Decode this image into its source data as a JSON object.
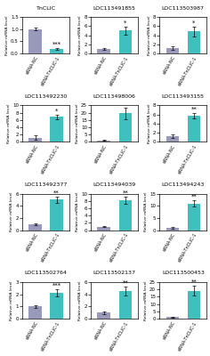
{
  "chart_data": [
    {
      "type": "bar",
      "title": "TnCLIC",
      "y_label": "Relative mRNA level",
      "categories": [
        "siRNA-NC",
        "siRNA-TnCLIC-1"
      ],
      "values": [
        1.0,
        0.2
      ],
      "errors": [
        0.05,
        0.04
      ],
      "colors": [
        "#9999bb",
        "#40bfbf"
      ],
      "ylim": [
        0,
        1.5
      ],
      "yticks": [
        {
          "value": 0,
          "label": "0.0"
        },
        0.5,
        {
          "value": 1,
          "label": "1.0"
        },
        1.5
      ],
      "annotations": [
        {
          "category": "siRNA-TnCLIC-1",
          "text": "***"
        }
      ]
    },
    {
      "type": "bar",
      "title": "LOC113491855",
      "y_label": "Relative mRNA level",
      "categories": [
        "siRNA-NC",
        "siRNA-TnCLIC-1"
      ],
      "values": [
        1.0,
        5.0
      ],
      "errors": [
        0.15,
        0.9
      ],
      "colors": [
        "#9999bb",
        "#40bfbf"
      ],
      "ylim": [
        0,
        8
      ],
      "yticks": [
        0,
        2,
        4,
        6,
        8
      ],
      "annotations": [
        {
          "category": "siRNA-TnCLIC-1",
          "text": "*"
        }
      ]
    },
    {
      "type": "bar",
      "title": "LOC113503987",
      "y_label": "Relative mRNA level",
      "categories": [
        "siRNA-NC",
        "siRNA-TnCLIC-1"
      ],
      "values": [
        1.2,
        4.8
      ],
      "errors": [
        0.3,
        1.0
      ],
      "colors": [
        "#9999bb",
        "#40bfbf"
      ],
      "ylim": [
        0,
        8
      ],
      "yticks": [
        0,
        2,
        4,
        6,
        8
      ],
      "annotations": [
        {
          "category": "siRNA-TnCLIC-1",
          "text": "*"
        }
      ]
    },
    {
      "type": "bar",
      "title": "LOC113492230",
      "y_label": "Relative mRNA level",
      "categories": [
        "siRNA-NC",
        "siRNA-TnCLIC-1"
      ],
      "values": [
        1.2,
        6.8
      ],
      "errors": [
        0.5,
        0.7
      ],
      "colors": [
        "#9999bb",
        "#40bfbf"
      ],
      "ylim": [
        0,
        10
      ],
      "yticks": [
        0,
        2,
        4,
        6,
        8,
        10
      ],
      "annotations": [
        {
          "category": "siRNA-TnCLIC-1",
          "text": "*"
        }
      ]
    },
    {
      "type": "bar",
      "title": "LOC113498006",
      "y_label": "Relative mRNA level",
      "categories": [
        "siRNA-NC",
        "siRNA-TnCLIC-1"
      ],
      "values": [
        1.0,
        19.5
      ],
      "errors": [
        0.3,
        4.0
      ],
      "colors": [
        "#9999bb",
        "#40bfbf"
      ],
      "ylim": [
        0,
        25
      ],
      "yticks": [
        0,
        5,
        10,
        15,
        20,
        25
      ]
    },
    {
      "type": "bar",
      "title": "LOC113493155",
      "y_label": "Relative mRNA level",
      "categories": [
        "siRNA-NC",
        "siRNA-TnCLIC-1"
      ],
      "values": [
        1.2,
        5.8
      ],
      "errors": [
        0.4,
        0.6
      ],
      "colors": [
        "#9999bb",
        "#40bfbf"
      ],
      "ylim": [
        0,
        8
      ],
      "yticks": [
        0,
        2,
        4,
        6,
        8
      ],
      "annotations": [
        {
          "category": "siRNA-TnCLIC-1",
          "text": "**"
        }
      ]
    },
    {
      "type": "bar",
      "title": "LOC113492377",
      "y_label": "Relative mRNA level",
      "categories": [
        "siRNA-NC",
        "siRNA-TnCLIC-1"
      ],
      "values": [
        1.0,
        5.0
      ],
      "errors": [
        0.12,
        0.5
      ],
      "colors": [
        "#9999bb",
        "#40bfbf"
      ],
      "ylim": [
        0,
        6
      ],
      "yticks": [
        0,
        2,
        4,
        6
      ],
      "annotations": [
        {
          "category": "siRNA-TnCLIC-1",
          "text": "**"
        }
      ]
    },
    {
      "type": "bar",
      "title": "LOC113494039",
      "y_label": "Relative mRNA level",
      "categories": [
        "siRNA-NC",
        "siRNA-TnCLIC-1"
      ],
      "values": [
        1.0,
        8.2
      ],
      "errors": [
        0.2,
        1.0
      ],
      "colors": [
        "#9999bb",
        "#40bfbf"
      ],
      "ylim": [
        0,
        10
      ],
      "yticks": [
        0,
        2,
        4,
        6,
        8,
        10
      ],
      "annotations": [
        {
          "category": "siRNA-TnCLIC-1",
          "text": "**"
        }
      ]
    },
    {
      "type": "bar",
      "title": "LOC113494243",
      "y_label": "Relative mRNA level",
      "categories": [
        "siRNA-NC",
        "siRNA-TnCLIC-1"
      ],
      "values": [
        1.0,
        11.0
      ],
      "errors": [
        0.2,
        1.3
      ],
      "colors": [
        "#9999bb",
        "#40bfbf"
      ],
      "ylim": [
        0,
        15
      ],
      "yticks": [
        0,
        5,
        10,
        15
      ],
      "annotations": [
        {
          "category": "siRNA-TnCLIC-1",
          "text": "**"
        }
      ]
    },
    {
      "type": "bar",
      "title": "LOC113502764",
      "y_label": "Relative mRNA level",
      "categories": [
        "siRNA-NC",
        "siRNA-TnCLIC-1"
      ],
      "values": [
        1.0,
        2.1
      ],
      "errors": [
        0.1,
        0.3
      ],
      "colors": [
        "#9999bb",
        "#40bfbf"
      ],
      "ylim": [
        0,
        3
      ],
      "yticks": [
        0,
        1,
        2,
        3
      ],
      "annotations": [
        {
          "category": "siRNA-TnCLIC-1",
          "text": "***"
        }
      ]
    },
    {
      "type": "bar",
      "title": "LOC113502137",
      "y_label": "Relative mRNA level",
      "categories": [
        "siRNA-NC",
        "siRNA-TnCLIC-1"
      ],
      "values": [
        1.0,
        4.5
      ],
      "errors": [
        0.2,
        0.7
      ],
      "colors": [
        "#9999bb",
        "#40bfbf"
      ],
      "ylim": [
        0,
        6
      ],
      "yticks": [
        0,
        2,
        4,
        6
      ],
      "annotations": [
        {
          "category": "siRNA-TnCLIC-1",
          "text": "**"
        }
      ]
    },
    {
      "type": "bar",
      "title": "LOC113500453",
      "y_label": "Relative mRNA level",
      "categories": [
        "siRNA-NC",
        "siRNA-TnCLIC-1"
      ],
      "values": [
        1.0,
        19.0
      ],
      "errors": [
        0.4,
        3.5
      ],
      "colors": [
        "#9999bb",
        "#40bfbf"
      ],
      "ylim": [
        0,
        25
      ],
      "yticks": [
        0,
        5,
        10,
        15,
        20,
        25
      ],
      "annotations": [
        {
          "category": "siRNA-TnCLIC-1",
          "text": "**"
        }
      ]
    }
  ]
}
